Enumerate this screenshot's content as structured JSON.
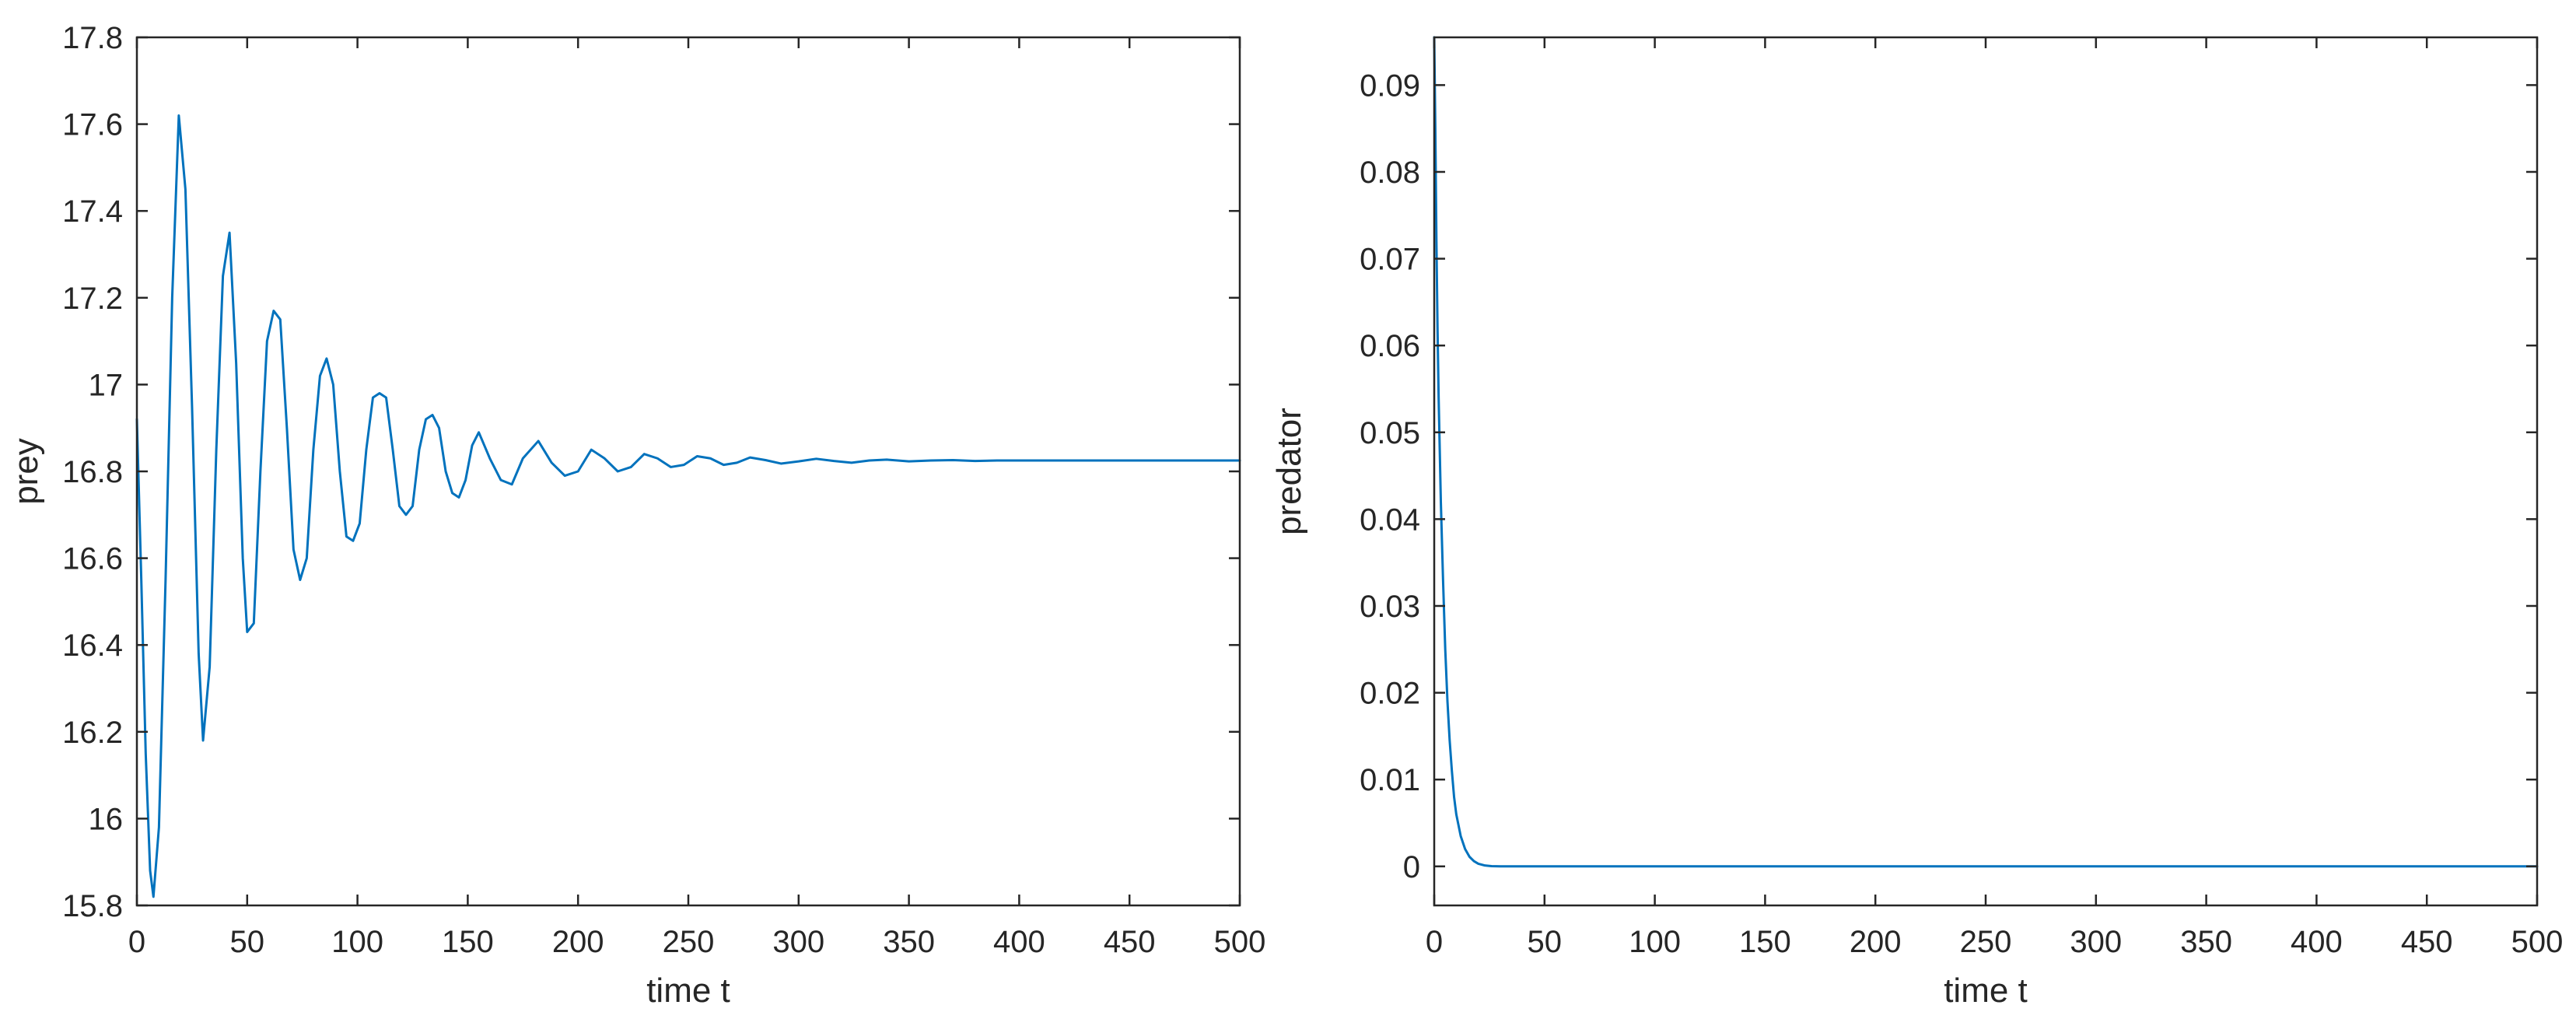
{
  "figure": {
    "background": "#ffffff",
    "line_color": "#0072BD",
    "axes_color": "#262626"
  },
  "chart_data": [
    {
      "type": "line",
      "title": "",
      "xlabel": "time t",
      "ylabel": "prey",
      "xlim": [
        0,
        500
      ],
      "ylim": [
        15.8,
        17.8
      ],
      "xticks": [
        0,
        50,
        100,
        150,
        200,
        250,
        300,
        350,
        400,
        450,
        500
      ],
      "xtick_labels": [
        "0",
        "50",
        "100",
        "150",
        "200",
        "250",
        "300",
        "350",
        "400",
        "450",
        "500"
      ],
      "yticks": [
        15.8,
        16,
        16.2,
        16.4,
        16.6,
        16.8,
        17,
        17.2,
        17.4,
        17.6,
        17.8
      ],
      "ytick_labels": [
        "15.8",
        "16",
        "16.2",
        "16.4",
        "16.6",
        "16.8",
        "17",
        "17.2",
        "17.4",
        "17.6",
        "17.8"
      ],
      "grid": false,
      "series": [
        {
          "name": "",
          "color": "#0072BD",
          "x": [
            0,
            2,
            4,
            6,
            7.5,
            10,
            13,
            16,
            19,
            22,
            25,
            28,
            30,
            33,
            36,
            39,
            42,
            45,
            48,
            50,
            53,
            56,
            59,
            62,
            65,
            68,
            71,
            74,
            77,
            80,
            83,
            86,
            89,
            92,
            95,
            98,
            101,
            104,
            107,
            110,
            113,
            116,
            119,
            122,
            125,
            128,
            131,
            134,
            137,
            140,
            143,
            146,
            149,
            152,
            155,
            160,
            165,
            170,
            175,
            182,
            188,
            194,
            200,
            206,
            212,
            218,
            224,
            230,
            236,
            242,
            248,
            254,
            260,
            266,
            272,
            278,
            285,
            292,
            300,
            308,
            316,
            324,
            332,
            340,
            350,
            360,
            370,
            380,
            390,
            400,
            420,
            450,
            480,
            500
          ],
          "y": [
            16.92,
            16.55,
            16.15,
            15.88,
            15.82,
            15.98,
            16.55,
            17.2,
            17.62,
            17.45,
            16.95,
            16.38,
            16.18,
            16.35,
            16.85,
            17.25,
            17.35,
            17.05,
            16.6,
            16.43,
            16.45,
            16.8,
            17.1,
            17.17,
            17.15,
            16.9,
            16.62,
            16.55,
            16.6,
            16.85,
            17.02,
            17.06,
            17.0,
            16.8,
            16.65,
            16.64,
            16.68,
            16.85,
            16.97,
            16.98,
            16.97,
            16.85,
            16.72,
            16.7,
            16.72,
            16.85,
            16.92,
            16.93,
            16.9,
            16.8,
            16.75,
            16.74,
            16.78,
            16.86,
            16.89,
            16.83,
            16.78,
            16.77,
            16.83,
            16.87,
            16.82,
            16.79,
            16.8,
            16.85,
            16.83,
            16.8,
            16.81,
            16.84,
            16.83,
            16.81,
            16.815,
            16.835,
            16.83,
            16.815,
            16.82,
            16.832,
            16.826,
            16.818,
            16.823,
            16.829,
            16.824,
            16.82,
            16.825,
            16.827,
            16.823,
            16.825,
            16.826,
            16.824,
            16.825,
            16.825,
            16.825,
            16.825,
            16.825,
            16.825
          ]
        }
      ]
    },
    {
      "type": "line",
      "title": "",
      "xlabel": "time t",
      "ylabel": "predator",
      "xlim": [
        0,
        500
      ],
      "ylim": [
        -0.0045,
        0.0955
      ],
      "xticks": [
        0,
        50,
        100,
        150,
        200,
        250,
        300,
        350,
        400,
        450,
        500
      ],
      "xtick_labels": [
        "0",
        "50",
        "100",
        "150",
        "200",
        "250",
        "300",
        "350",
        "400",
        "450",
        "500"
      ],
      "yticks": [
        0,
        0.01,
        0.02,
        0.03,
        0.04,
        0.05,
        0.06,
        0.07,
        0.08,
        0.09
      ],
      "ytick_labels": [
        "0",
        "0.01",
        "0.02",
        "0.03",
        "0.04",
        "0.05",
        "0.06",
        "0.07",
        "0.08",
        "0.09"
      ],
      "grid": false,
      "series": [
        {
          "name": "",
          "color": "#0072BD",
          "x": [
            0,
            0.5,
            1,
            1.5,
            2,
            3,
            4,
            5,
            6,
            7,
            8,
            9,
            10,
            12,
            14,
            16,
            18,
            20,
            23,
            26,
            30,
            40,
            60,
            100,
            200,
            300,
            400,
            500
          ],
          "y": [
            0.0955,
            0.085,
            0.072,
            0.062,
            0.054,
            0.042,
            0.033,
            0.025,
            0.019,
            0.0145,
            0.011,
            0.008,
            0.006,
            0.0035,
            0.002,
            0.0011,
            0.0006,
            0.0003,
            0.0001,
            3e-05,
            0.0,
            0.0,
            0.0,
            0.0,
            0.0,
            0.0,
            0.0,
            0.0
          ]
        }
      ]
    }
  ]
}
